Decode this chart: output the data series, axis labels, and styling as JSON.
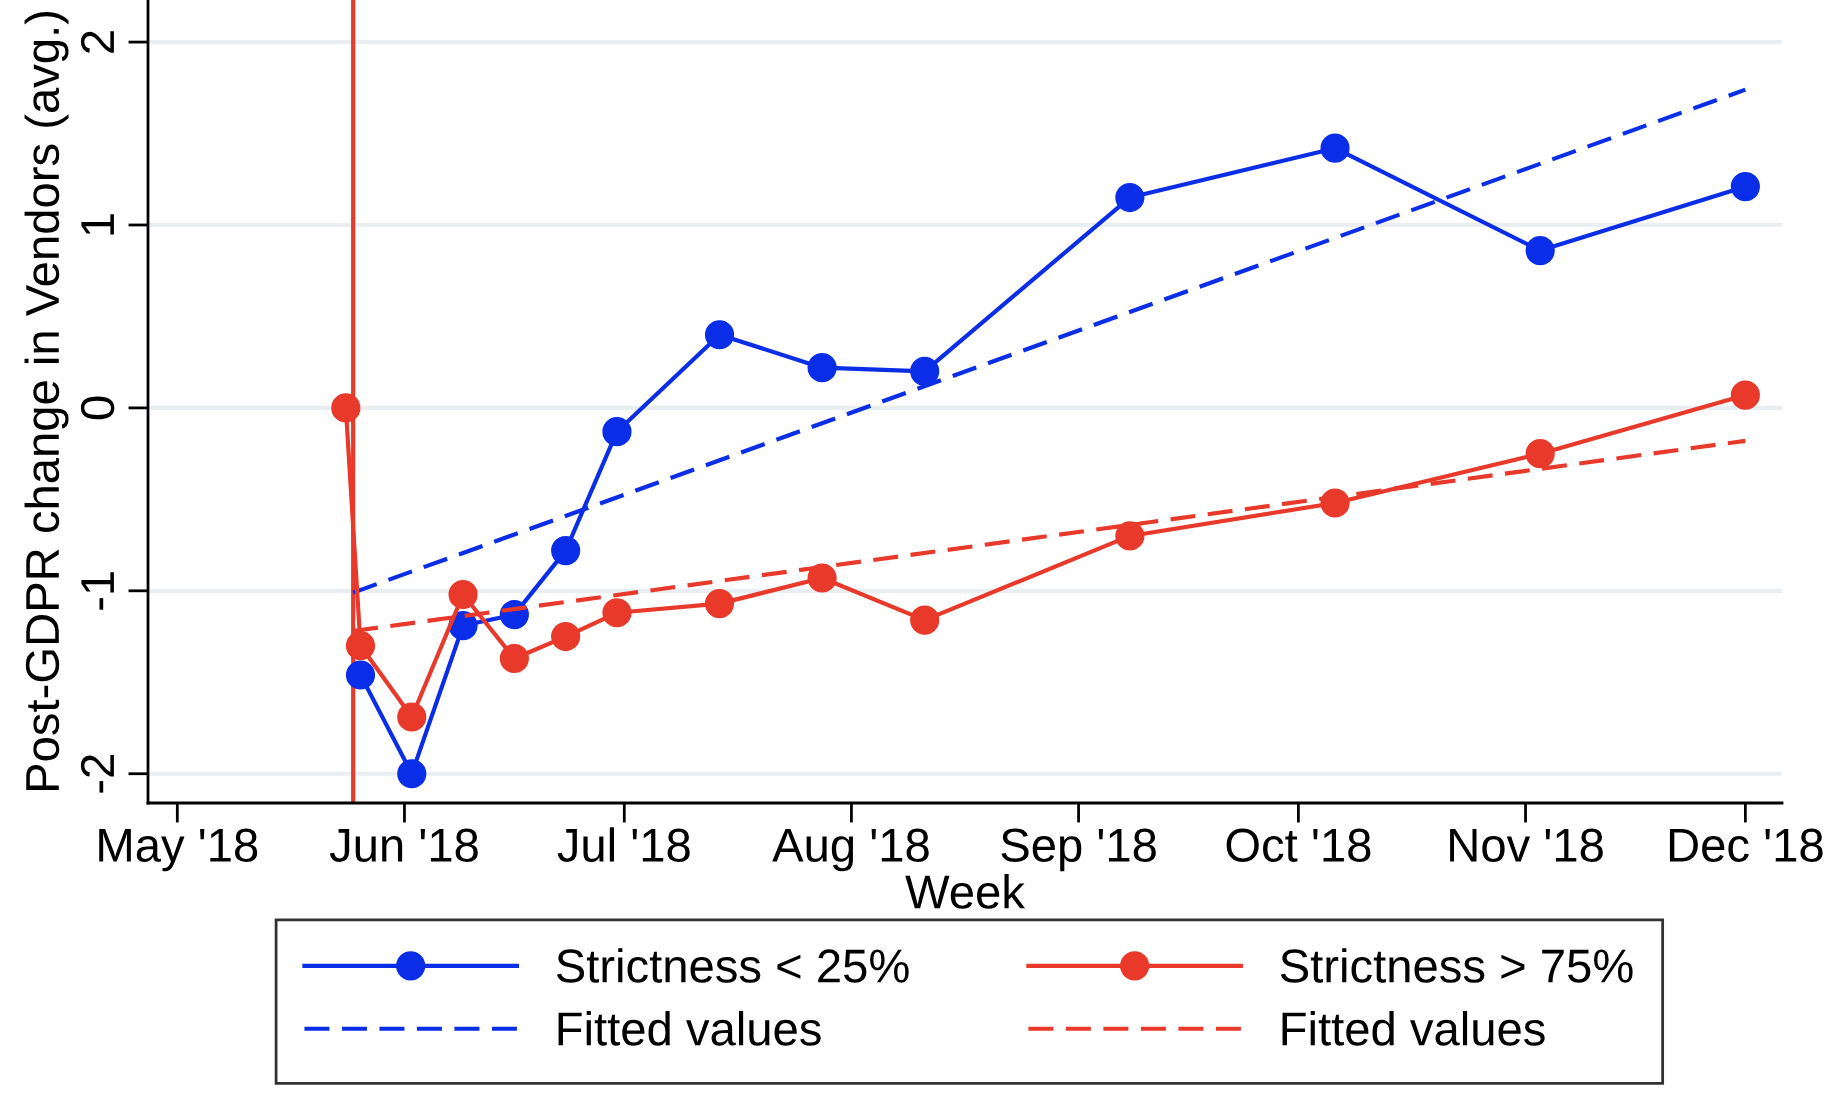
{
  "chart_data": {
    "type": "line",
    "xlabel": "Week",
    "ylabel": "Post-GDPR change in Vendors (avg.)",
    "xlim": [
      "2018-04-27",
      "2018-12-06"
    ],
    "ylim": [
      -2.16,
      2.23
    ],
    "yticks": [
      -2,
      -1,
      0,
      1,
      2
    ],
    "xticks": [
      {
        "value": "2018-05-01",
        "label": "May '18"
      },
      {
        "value": "2018-06-01",
        "label": "Jun '18"
      },
      {
        "value": "2018-07-01",
        "label": "Jul '18"
      },
      {
        "value": "2018-08-01",
        "label": "Aug '18"
      },
      {
        "value": "2018-09-01",
        "label": "Sep '18"
      },
      {
        "value": "2018-10-01",
        "label": "Oct '18"
      },
      {
        "value": "2018-11-01",
        "label": "Nov '18"
      },
      {
        "value": "2018-12-01",
        "label": "Dec '18"
      }
    ],
    "grid": "y",
    "legend": "bottom",
    "ref_lines": [
      {
        "axis": "x",
        "value": "2018-05-25",
        "color": "#e8392a"
      }
    ],
    "series": [
      {
        "name": "Strictness < 25%",
        "color": "#0a2ee8",
        "marker": "circle",
        "line_style": "solid",
        "x": [
          "2018-05-26",
          "2018-06-02",
          "2018-06-09",
          "2018-06-16",
          "2018-06-23",
          "2018-06-30",
          "2018-07-14",
          "2018-07-28",
          "2018-08-11",
          "2018-09-08",
          "2018-10-06",
          "2018-11-03",
          "2018-12-01"
        ],
        "values": [
          -1.46,
          -2.0,
          -1.19,
          -1.13,
          -0.78,
          -0.13,
          0.4,
          0.22,
          0.2,
          1.15,
          1.42,
          0.86,
          1.21
        ]
      },
      {
        "name": "Fitted values",
        "color": "#0a2ee8",
        "marker": "none",
        "line_style": "dashed",
        "x": [
          "2018-05-25",
          "2018-12-01"
        ],
        "values": [
          -1.01,
          1.74
        ]
      },
      {
        "name": "Strictness > 75%",
        "color": "#e8392a",
        "marker": "circle",
        "line_style": "solid",
        "x": [
          "2018-05-24",
          "2018-05-26",
          "2018-06-02",
          "2018-06-09",
          "2018-06-16",
          "2018-06-23",
          "2018-06-30",
          "2018-07-14",
          "2018-07-28",
          "2018-08-11",
          "2018-09-08",
          "2018-10-06",
          "2018-11-03",
          "2018-12-01"
        ],
        "values": [
          0.0,
          -1.3,
          -1.69,
          -1.02,
          -1.37,
          -1.25,
          -1.12,
          -1.07,
          -0.93,
          -1.16,
          -0.7,
          -0.52,
          -0.25,
          0.07
        ]
      },
      {
        "name": "Fitted values",
        "color": "#e8392a",
        "marker": "none",
        "line_style": "dashed",
        "x": [
          "2018-05-25",
          "2018-12-01"
        ],
        "values": [
          -1.22,
          -0.18
        ]
      }
    ]
  }
}
